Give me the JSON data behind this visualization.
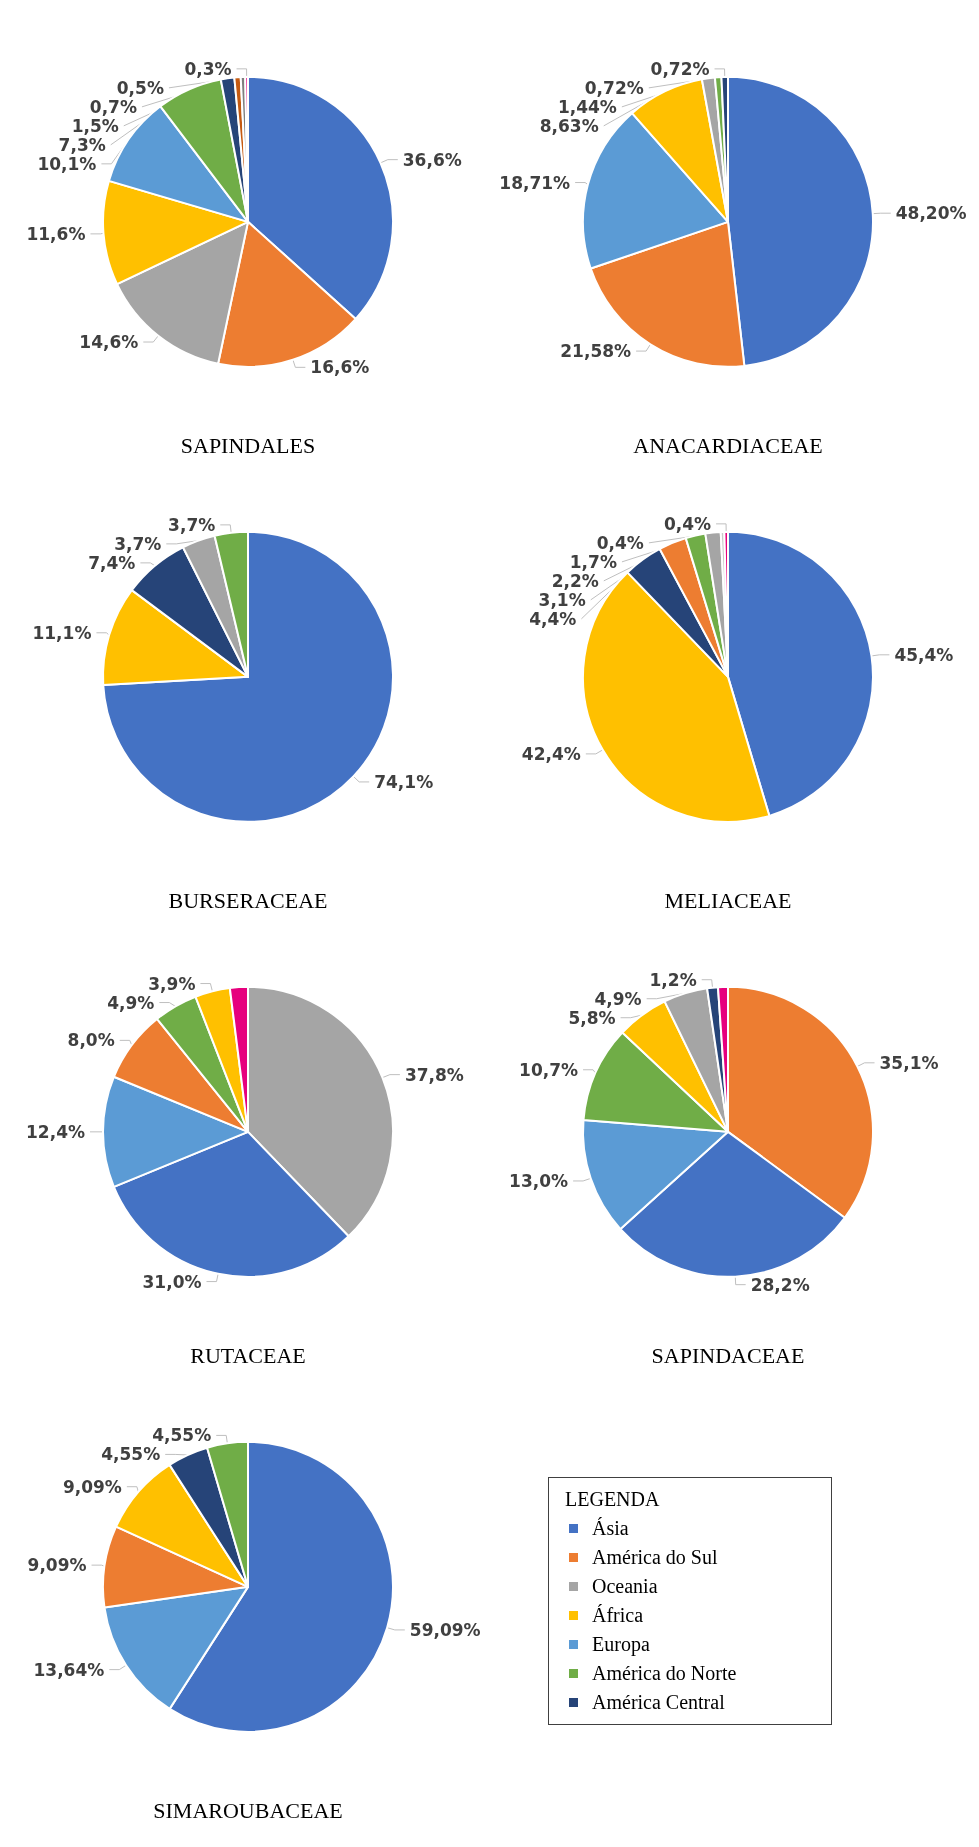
{
  "chart_data": [
    {
      "type": "pie",
      "title": "SAPINDALES",
      "categories": [
        "Ásia",
        "América do Sul",
        "Oceania",
        "África",
        "Europa",
        "América do Norte",
        "América Central",
        null,
        null,
        null
      ],
      "values": [
        36.6,
        16.6,
        14.6,
        11.6,
        10.1,
        7.3,
        1.5,
        0.7,
        0.5,
        0.3
      ],
      "colors": [
        "#4472c4",
        "#ed7d31",
        "#a5a5a5",
        "#ffc000",
        "#5b9bd5",
        "#70ad47",
        "#264478",
        "#c55a11",
        "#7f7f7f",
        "#e6007e"
      ],
      "value_labels": [
        "36,6%",
        "16,6%",
        "14,6%",
        "11,6%",
        "10,1%",
        "7,3%",
        "1,5%",
        "0,7%",
        "0,5%",
        "0,3%"
      ],
      "legend": "bottom right",
      "legend_title": "LEGENDA"
    },
    {
      "type": "pie",
      "title": "ANACARDIACEAE",
      "categories": [
        null,
        null,
        null,
        null,
        null,
        null,
        null
      ],
      "values": [
        48.2,
        21.58,
        18.71,
        8.63,
        1.44,
        0.72,
        0.72
      ],
      "colors": [
        "#4472c4",
        "#ed7d31",
        "#5b9bd5",
        "#ffc000",
        "#a5a5a5",
        "#70ad47",
        "#264478"
      ],
      "value_labels": [
        "48,20%",
        "21,58%",
        "18,71%",
        "8,63%",
        "1,44%",
        "0,72%",
        "0,72%"
      ]
    },
    {
      "type": "pie",
      "title": "BURSERACEAE",
      "categories": [
        null,
        null,
        null,
        null,
        null
      ],
      "values": [
        74.1,
        11.1,
        7.4,
        3.7,
        3.7
      ],
      "colors": [
        "#4472c4",
        "#ffc000",
        "#264478",
        "#a5a5a5",
        "#70ad47"
      ],
      "value_labels": [
        "74,1%",
        "11,1%",
        "7,4%",
        "3,7%",
        "3,7%"
      ]
    },
    {
      "type": "pie",
      "title": "MELIACEAE",
      "categories": [
        null,
        null,
        null,
        null,
        null,
        null,
        null,
        null
      ],
      "values": [
        45.4,
        42.4,
        4.4,
        3.1,
        2.2,
        1.7,
        0.4,
        0.4
      ],
      "colors": [
        "#4472c4",
        "#ffc000",
        "#264478",
        "#ed7d31",
        "#70ad47",
        "#a5a5a5",
        "#c9c9c9",
        "#e6007e"
      ],
      "value_labels": [
        "45,4%",
        "42,4%",
        "4,4%",
        "3,1%",
        "2,2%",
        "1,7%",
        "0,4%",
        "0,4%"
      ]
    },
    {
      "type": "pie",
      "title": "RUTACEAE",
      "categories": [
        null,
        null,
        null,
        null,
        null,
        null,
        null
      ],
      "values": [
        37.8,
        31.0,
        12.4,
        8.0,
        4.9,
        3.9,
        2.0
      ],
      "colors": [
        "#a5a5a5",
        "#4472c4",
        "#5b9bd5",
        "#ed7d31",
        "#70ad47",
        "#ffc000",
        "#e6007e"
      ],
      "value_labels": [
        "37,8%",
        "31,0%",
        "12,4%",
        "8,0%",
        "4,9%",
        "3,9%",
        null
      ]
    },
    {
      "type": "pie",
      "title": "SAPINDACEAE",
      "categories": [
        null,
        null,
        null,
        null,
        null,
        null,
        null,
        null
      ],
      "values": [
        35.1,
        28.2,
        13.0,
        10.7,
        5.8,
        4.9,
        1.2,
        1.1
      ],
      "colors": [
        "#ed7d31",
        "#4472c4",
        "#5b9bd5",
        "#70ad47",
        "#ffc000",
        "#a5a5a5",
        "#264478",
        "#e6007e"
      ],
      "value_labels": [
        "35,1%",
        "28,2%",
        "13,0%",
        "10,7%",
        "5,8%",
        "4,9%",
        "1,2%",
        null
      ]
    },
    {
      "type": "pie",
      "title": "SIMAROUBACEAE",
      "categories": [
        null,
        null,
        null,
        null,
        null,
        null
      ],
      "values": [
        59.09,
        13.64,
        9.09,
        9.09,
        4.55,
        4.55
      ],
      "colors": [
        "#4472c4",
        "#5b9bd5",
        "#ed7d31",
        "#ffc000",
        "#264478",
        "#70ad47"
      ],
      "value_labels": [
        "59,09%",
        "13,64%",
        "9,09%",
        "9,09%",
        "4,55%",
        "4,55%"
      ]
    }
  ]
}
